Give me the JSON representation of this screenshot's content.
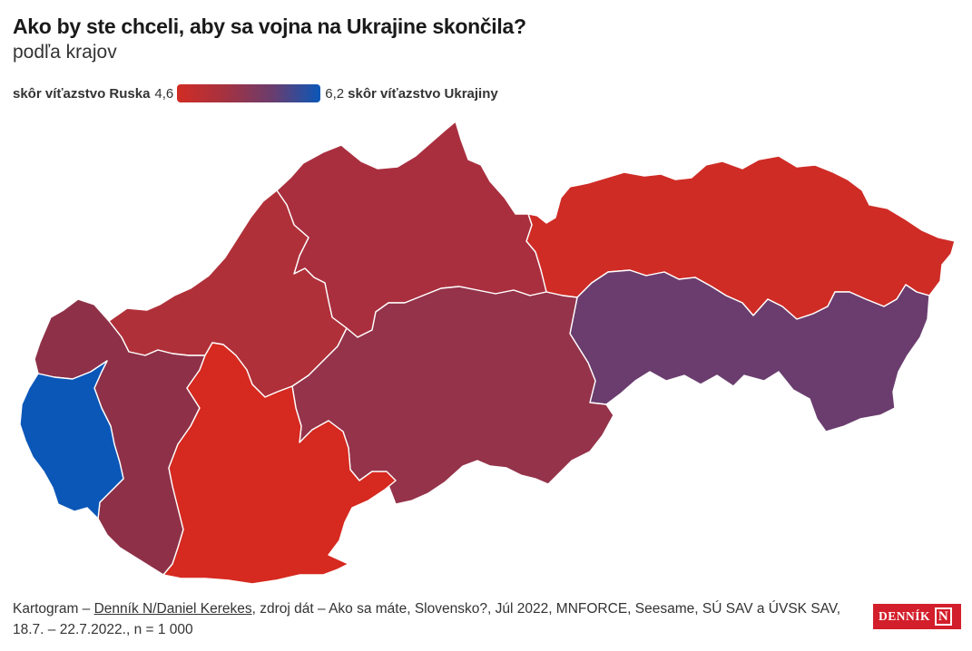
{
  "header": {
    "title": "Ako by ste chceli, aby sa vojna na Ukrajine skončila?",
    "subtitle": "podľa krajov"
  },
  "legend": {
    "left_label": "skôr víťazstvo Ruska",
    "min": "4,6",
    "max": "6,2",
    "right_label": "skôr víťazstvo Ukrajiny",
    "colors": [
      "#d12c24",
      "#a53240",
      "#6a3d6e",
      "#0b57b8"
    ]
  },
  "map_data": {
    "type": "choropleth",
    "metric_range": [
      4.6,
      6.2
    ],
    "regions": [
      {
        "id": "bratislava",
        "color": "#0b57b8"
      },
      {
        "id": "trnava",
        "color": "#8e3148"
      },
      {
        "id": "trencin",
        "color": "#b03039"
      },
      {
        "id": "nitra",
        "color": "#d6291f"
      },
      {
        "id": "zilina",
        "color": "#a92f3f"
      },
      {
        "id": "banska-bystrica",
        "color": "#94334a"
      },
      {
        "id": "presov",
        "color": "#cf2c26"
      },
      {
        "id": "kosice",
        "color": "#6a3d6e"
      }
    ]
  },
  "footer": {
    "prefix": "Kartogram – ",
    "author_link": "Denník N/Daniel Kerekes",
    "source": ", zdroj dát – Ako sa máte, Slovensko?, Júl 2022, MNFORCE, Seesame, SÚ SAV a ÚVSK SAV,",
    "line2": "18.7. – 22.7.2022., n = 1 000"
  },
  "logo": {
    "word": "DENNÍK",
    "letter": "N"
  }
}
